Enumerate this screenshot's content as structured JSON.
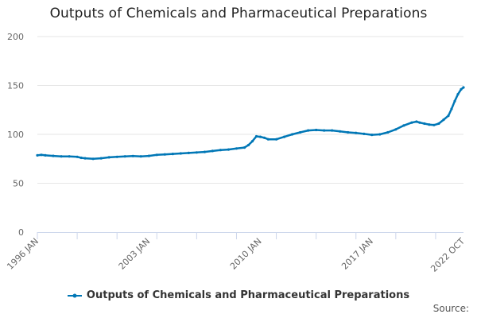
{
  "chart_data": {
    "type": "line",
    "title": "Outputs of Chemicals and Pharmaceutical Preparations",
    "xlabel": "",
    "ylabel": "",
    "x_tick_labels": [
      "1996 JAN",
      "2003 JAN",
      "2010 JAN",
      "2017 JAN",
      "2022 OCT"
    ],
    "x_tick_positions": [
      1996.0,
      2003.0,
      2010.0,
      2017.0,
      2022.75
    ],
    "xlim": [
      1996.0,
      2022.75
    ],
    "ylim": [
      0,
      200
    ],
    "y_ticks": [
      0,
      50,
      100,
      150,
      200
    ],
    "grid": "horizontal",
    "legend_placement": "bottom-center",
    "series": [
      {
        "name": "Outputs of Chemicals and Pharmaceutical Preparations",
        "color": "#0077b6",
        "points": [
          [
            1996.0,
            78.5
          ],
          [
            1996.25,
            79
          ],
          [
            1996.5,
            78.5
          ],
          [
            1997.0,
            78
          ],
          [
            1997.5,
            77.5
          ],
          [
            1998.0,
            77.5
          ],
          [
            1998.5,
            77
          ],
          [
            1998.75,
            76
          ],
          [
            1999.0,
            75.5
          ],
          [
            1999.5,
            75
          ],
          [
            2000.0,
            75.5
          ],
          [
            2000.5,
            76.5
          ],
          [
            2001.0,
            77
          ],
          [
            2001.5,
            77.5
          ],
          [
            2002.0,
            77.8
          ],
          [
            2002.5,
            77.5
          ],
          [
            2003.0,
            78
          ],
          [
            2003.5,
            79
          ],
          [
            2004.0,
            79.5
          ],
          [
            2004.5,
            80
          ],
          [
            2005.0,
            80.5
          ],
          [
            2005.5,
            81
          ],
          [
            2006.0,
            81.5
          ],
          [
            2006.5,
            82
          ],
          [
            2007.0,
            83
          ],
          [
            2007.5,
            84
          ],
          [
            2008.0,
            84.5
          ],
          [
            2008.5,
            85.5
          ],
          [
            2009.0,
            86.5
          ],
          [
            2009.25,
            89
          ],
          [
            2009.5,
            93
          ],
          [
            2009.75,
            98
          ],
          [
            2010.0,
            97.5
          ],
          [
            2010.25,
            96.5
          ],
          [
            2010.5,
            95
          ],
          [
            2011.0,
            95
          ],
          [
            2011.5,
            97.5
          ],
          [
            2012.0,
            100
          ],
          [
            2012.5,
            102
          ],
          [
            2013.0,
            104
          ],
          [
            2013.5,
            104.5
          ],
          [
            2014.0,
            104
          ],
          [
            2014.5,
            104
          ],
          [
            2015.0,
            103
          ],
          [
            2015.5,
            102
          ],
          [
            2016.0,
            101.5
          ],
          [
            2016.5,
            100.5
          ],
          [
            2017.0,
            99.5
          ],
          [
            2017.5,
            100
          ],
          [
            2018.0,
            102
          ],
          [
            2018.5,
            105
          ],
          [
            2019.0,
            109
          ],
          [
            2019.5,
            112
          ],
          [
            2019.8,
            113
          ],
          [
            2020.0,
            112
          ],
          [
            2020.3,
            111
          ],
          [
            2020.6,
            110
          ],
          [
            2020.9,
            109.5
          ],
          [
            2021.2,
            111
          ],
          [
            2021.5,
            115
          ],
          [
            2021.8,
            119
          ],
          [
            2022.0,
            126
          ],
          [
            2022.2,
            134
          ],
          [
            2022.4,
            141
          ],
          [
            2022.6,
            146
          ],
          [
            2022.75,
            148
          ]
        ]
      }
    ]
  },
  "legend": {
    "label": "Outputs of Chemicals and Pharmaceutical Preparations"
  },
  "footer": {
    "source_label": "Source:"
  }
}
